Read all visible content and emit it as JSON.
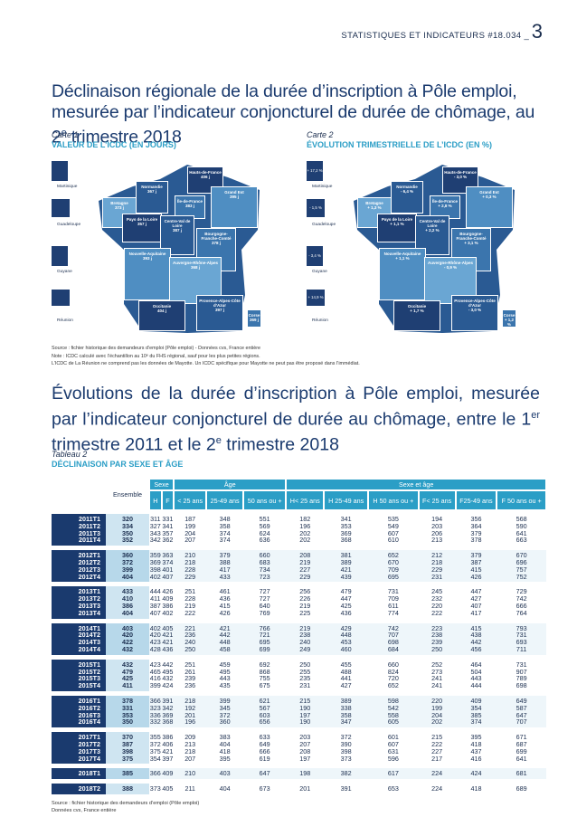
{
  "header": {
    "text": "STATISTIQUES ET INDICATEURS",
    "issue": "#18.034",
    "page": "3"
  },
  "title1": {
    "text": "Déclinaison régionale de la durée d’inscription à Pôle emploi, mesurée par l’indicateur conjoncturel de durée de chômage, au 2",
    "sup": "e",
    "rest": " trimestre 2018"
  },
  "map1": {
    "label": "Carte 1",
    "title": "VALEUR DE L’ICDC (EN JOURS)",
    "islands": [
      "Martinique",
      "Guadeloupe",
      "Guyane",
      "Réunion"
    ],
    "regions": [
      {
        "name": "Hauts-de-France",
        "value": "406 j"
      },
      {
        "name": "Normandie",
        "value": "367 j"
      },
      {
        "name": "Île-de-France",
        "value": "383 j"
      },
      {
        "name": "Grand Est",
        "value": "395 j"
      },
      {
        "name": "Bretagne",
        "value": "373 j"
      },
      {
        "name": "Pays de la Loire",
        "value": "357 j"
      },
      {
        "name": "Centre-Val de Loire",
        "value": "387 j"
      },
      {
        "name": "Bourgogne-Franche-Comté",
        "value": "378 j"
      },
      {
        "name": "Nouvelle-Aquitaine",
        "value": "393 j"
      },
      {
        "name": "Auvergne-Rhône-Alpes",
        "value": "368 j"
      },
      {
        "name": "Occitanie",
        "value": "404 j"
      },
      {
        "name": "Provence-Alpes-Côte d’Azur",
        "value": "397 j"
      },
      {
        "name": "Corse",
        "value": "369 j"
      }
    ]
  },
  "map2": {
    "label": "Carte 2",
    "title": "ÉVOLUTION TRIMESTRIELLE DE L’ICDC (EN %)",
    "islands": [
      "Martinique",
      "Guadeloupe",
      "Guyane",
      "Réunion"
    ],
    "island_values": [
      "+ 17,2 %",
      "- 1,5 %",
      "- 3,4 %",
      "+ 14,9 %"
    ],
    "regions": [
      {
        "name": "Hauts-de-France",
        "value": "- 3,0 %"
      },
      {
        "name": "Normandie",
        "value": "- 6,4 %"
      },
      {
        "name": "Île-de-France",
        "value": "+ 2,8 %"
      },
      {
        "name": "Grand Est",
        "value": "+ 0,3 %"
      },
      {
        "name": "Bretagne",
        "value": "+ 1,3 %"
      },
      {
        "name": "Pays de la Loire",
        "value": "+ 1,1 %"
      },
      {
        "name": "Centre-Val de Loire",
        "value": "+ 2,2 %"
      },
      {
        "name": "Bourgogne-Franche-Comté",
        "value": "+ 3,1 %"
      },
      {
        "name": "Nouvelle-Aquitaine",
        "value": "+ 1,1 %"
      },
      {
        "name": "Auvergne-Rhône-Alpes",
        "value": "- 0,9 %"
      },
      {
        "name": "Occitanie",
        "value": "+ 1,7 %"
      },
      {
        "name": "Provence-Alpes-Côte d’Azur",
        "value": "- 3,0 %"
      },
      {
        "name": "Corse",
        "value": "+ 1,2 %"
      }
    ]
  },
  "source1": [
    "Source : fichier historique des demandeurs d’emploi (Pôle emploi) - Données cvs, France entière",
    "Note : ICDC calculé avec l’échantillon au 10ᵉ du FHS régional, sauf pour les plus petites régions.",
    "L’ICDC de La Réunion ne comprend pas les données de Mayotte. Un ICDC spécifique pour Mayotte ne peut pas être proposé dans l’immédiat."
  ],
  "title2": {
    "a": "Évolutions de la durée d’inscription à Pôle emploi, mesurée par l’indicateur conjoncturel de durée au chômage, entre le 1",
    "sup1": "er",
    "b": " trimestre 2011 et le 2",
    "sup2": "e",
    "c": " trimestre 2018"
  },
  "table": {
    "label": "Tableau 2",
    "title": "DÉCLINAISON PAR SEXE ET ÂGE",
    "group_headers": {
      "sexe": "Sexe",
      "age": "Âge",
      "sexe_age": "Sexe et âge"
    },
    "ensemble": "Ensemble",
    "columns": [
      "H",
      "F",
      "< 25 ans",
      "25-49 ans",
      "50 ans ou +",
      "H< 25 ans",
      "H 25-49 ans",
      "H 50 ans ou +",
      "F< 25 ans",
      "F25-49 ans",
      "F 50 ans ou +"
    ],
    "blocks": [
      {
        "labels": [
          "2011T1",
          "2011T2",
          "2011T3",
          "2011T4"
        ],
        "ensemble": [
          "320",
          "334",
          "350",
          "352"
        ],
        "cols": [
          [
            "311",
            "327",
            "343",
            "342"
          ],
          [
            "331",
            "341",
            "357",
            "362"
          ],
          [
            "187",
            "199",
            "204",
            "207"
          ],
          [
            "348",
            "358",
            "374",
            "374"
          ],
          [
            "551",
            "569",
            "624",
            "636"
          ],
          [
            "182",
            "196",
            "202",
            "202"
          ],
          [
            "341",
            "353",
            "369",
            "368"
          ],
          [
            "535",
            "549",
            "607",
            "610"
          ],
          [
            "194",
            "203",
            "206",
            "213"
          ],
          [
            "356",
            "364",
            "379",
            "378"
          ],
          [
            "568",
            "590",
            "641",
            "663"
          ]
        ]
      },
      {
        "labels": [
          "2012T1",
          "2012T2",
          "2012T3",
          "2012T4"
        ],
        "ensemble": [
          "360",
          "372",
          "399",
          "404"
        ],
        "cols": [
          [
            "359",
            "369",
            "398",
            "402"
          ],
          [
            "363",
            "374",
            "401",
            "407"
          ],
          [
            "210",
            "218",
            "228",
            "229"
          ],
          [
            "379",
            "388",
            "417",
            "433"
          ],
          [
            "660",
            "683",
            "734",
            "723"
          ],
          [
            "208",
            "219",
            "227",
            "229"
          ],
          [
            "381",
            "389",
            "421",
            "439"
          ],
          [
            "652",
            "670",
            "709",
            "695"
          ],
          [
            "212",
            "218",
            "229",
            "231"
          ],
          [
            "379",
            "387",
            "415",
            "426"
          ],
          [
            "670",
            "696",
            "757",
            "752"
          ]
        ]
      },
      {
        "labels": [
          "2013T1",
          "2013T2",
          "2013T3",
          "2013T4"
        ],
        "ensemble": [
          "433",
          "410",
          "386",
          "404"
        ],
        "cols": [
          [
            "444",
            "411",
            "387",
            "407"
          ],
          [
            "426",
            "409",
            "386",
            "402"
          ],
          [
            "251",
            "228",
            "219",
            "222"
          ],
          [
            "461",
            "436",
            "415",
            "426"
          ],
          [
            "727",
            "727",
            "640",
            "769"
          ],
          [
            "256",
            "226",
            "219",
            "225"
          ],
          [
            "479",
            "447",
            "425",
            "436"
          ],
          [
            "731",
            "709",
            "611",
            "774"
          ],
          [
            "245",
            "232",
            "220",
            "222"
          ],
          [
            "447",
            "427",
            "407",
            "417"
          ],
          [
            "729",
            "742",
            "666",
            "764"
          ]
        ]
      },
      {
        "labels": [
          "2014T1",
          "2014T2",
          "2014T3",
          "2014T4"
        ],
        "ensemble": [
          "403",
          "420",
          "422",
          "432"
        ],
        "cols": [
          [
            "402",
            "420",
            "423",
            "428"
          ],
          [
            "405",
            "421",
            "421",
            "436"
          ],
          [
            "221",
            "236",
            "240",
            "250"
          ],
          [
            "421",
            "442",
            "448",
            "458"
          ],
          [
            "766",
            "721",
            "695",
            "699"
          ],
          [
            "219",
            "238",
            "240",
            "249"
          ],
          [
            "429",
            "448",
            "453",
            "460"
          ],
          [
            "742",
            "707",
            "698",
            "684"
          ],
          [
            "223",
            "238",
            "239",
            "250"
          ],
          [
            "415",
            "438",
            "442",
            "456"
          ],
          [
            "793",
            "731",
            "693",
            "711"
          ]
        ]
      },
      {
        "labels": [
          "2015T1",
          "2015T2",
          "2015T3",
          "2015T4"
        ],
        "ensemble": [
          "432",
          "479",
          "425",
          "411"
        ],
        "cols": [
          [
            "423",
            "465",
            "416",
            "399"
          ],
          [
            "442",
            "495",
            "432",
            "424"
          ],
          [
            "251",
            "261",
            "239",
            "236"
          ],
          [
            "459",
            "495",
            "443",
            "435"
          ],
          [
            "692",
            "868",
            "755",
            "675"
          ],
          [
            "250",
            "255",
            "235",
            "231"
          ],
          [
            "455",
            "488",
            "441",
            "427"
          ],
          [
            "660",
            "824",
            "720",
            "652"
          ],
          [
            "252",
            "273",
            "241",
            "241"
          ],
          [
            "464",
            "504",
            "443",
            "444"
          ],
          [
            "731",
            "907",
            "789",
            "698"
          ]
        ]
      },
      {
        "labels": [
          "2016T1",
          "2016T2",
          "2016T3",
          "2016T4"
        ],
        "ensemble": [
          "378",
          "331",
          "353",
          "350"
        ],
        "cols": [
          [
            "366",
            "323",
            "336",
            "332"
          ],
          [
            "391",
            "342",
            "369",
            "368"
          ],
          [
            "218",
            "192",
            "201",
            "196"
          ],
          [
            "399",
            "345",
            "372",
            "360"
          ],
          [
            "621",
            "567",
            "603",
            "656"
          ],
          [
            "215",
            "190",
            "197",
            "190"
          ],
          [
            "389",
            "338",
            "358",
            "347"
          ],
          [
            "598",
            "542",
            "558",
            "605"
          ],
          [
            "220",
            "199",
            "204",
            "202"
          ],
          [
            "409",
            "354",
            "385",
            "374"
          ],
          [
            "649",
            "587",
            "647",
            "707"
          ]
        ]
      },
      {
        "labels": [
          "2017T1",
          "2017T2",
          "2017T3",
          "2017T4"
        ],
        "ensemble": [
          "370",
          "387",
          "398",
          "375"
        ],
        "cols": [
          [
            "355",
            "372",
            "375",
            "354"
          ],
          [
            "386",
            "406",
            "421",
            "397"
          ],
          [
            "209",
            "213",
            "218",
            "207"
          ],
          [
            "383",
            "404",
            "418",
            "395"
          ],
          [
            "633",
            "649",
            "666",
            "619"
          ],
          [
            "203",
            "207",
            "208",
            "197"
          ],
          [
            "372",
            "390",
            "398",
            "373"
          ],
          [
            "601",
            "607",
            "631",
            "596"
          ],
          [
            "215",
            "222",
            "227",
            "217"
          ],
          [
            "395",
            "418",
            "437",
            "416"
          ],
          [
            "671",
            "687",
            "699",
            "641"
          ]
        ]
      },
      {
        "labels": [
          "2018T1"
        ],
        "ensemble": [
          "385"
        ],
        "cols": [
          [
            "366"
          ],
          [
            "409"
          ],
          [
            "210"
          ],
          [
            "403"
          ],
          [
            "647"
          ],
          [
            "198"
          ],
          [
            "382"
          ],
          [
            "617"
          ],
          [
            "224"
          ],
          [
            "424"
          ],
          [
            "681"
          ]
        ]
      },
      {
        "labels": [
          "2018T2"
        ],
        "ensemble": [
          "388"
        ],
        "cols": [
          [
            "373"
          ],
          [
            "405"
          ],
          [
            "211"
          ],
          [
            "404"
          ],
          [
            "673"
          ],
          [
            "201"
          ],
          [
            "391"
          ],
          [
            "653"
          ],
          [
            "224"
          ],
          [
            "418"
          ],
          [
            "689"
          ]
        ]
      }
    ]
  },
  "source2": [
    "Source : fichier historique des demandeurs d’emploi (Pôle emploi)",
    "Données cvs, France entière"
  ],
  "colors": {
    "navy": "#1a3a6e",
    "teal": "#2b9ec6",
    "light": "#cfe5f1"
  }
}
